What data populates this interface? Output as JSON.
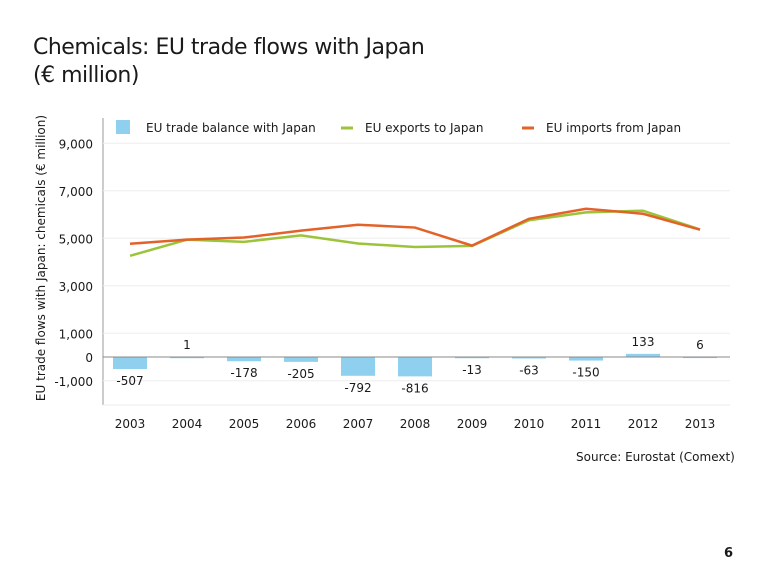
{
  "title_line1": "Chemicals: EU trade flows with Japan",
  "title_line2": "(€ million)",
  "source": "Source: Eurostat (Comext)",
  "page_number": "6",
  "chart_data": {
    "type": "bar+line",
    "ylabel": "EU trade flows with Japan: chemicals (€ million)",
    "categories": [
      "2003",
      "2004",
      "2005",
      "2006",
      "2007",
      "2008",
      "2009",
      "2010",
      "2011",
      "2012",
      "2013"
    ],
    "yticks": [
      9000,
      7000,
      5000,
      3000,
      1000,
      0,
      -1000
    ],
    "ytick_labels": [
      "9,000",
      "7,000",
      "5,000",
      "3,000",
      "1,000",
      "0",
      "-1,000"
    ],
    "ylim": [
      -2000,
      9500
    ],
    "legend_position": "top",
    "series": [
      {
        "name": "EU trade balance with Japan",
        "type": "bar",
        "color": "#8fd0ef",
        "values": [
          -507,
          1,
          -178,
          -205,
          -792,
          -816,
          -13,
          -63,
          -150,
          133,
          6
        ],
        "labels": [
          "-507",
          "1",
          "-178",
          "-205",
          "-792",
          "-816",
          "-13",
          "-63",
          "-150",
          "133",
          "6"
        ]
      },
      {
        "name": "EU exports to Japan",
        "type": "line",
        "color": "#9cc43a",
        "values": [
          4260,
          4940,
          4850,
          5120,
          4780,
          4630,
          4680,
          5760,
          6090,
          6160,
          5370
        ]
      },
      {
        "name": "EU imports from Japan",
        "type": "line",
        "color": "#e2622a",
        "values": [
          4770,
          4940,
          5030,
          5320,
          5570,
          5450,
          4690,
          5820,
          6240,
          6030,
          5360
        ]
      }
    ]
  }
}
